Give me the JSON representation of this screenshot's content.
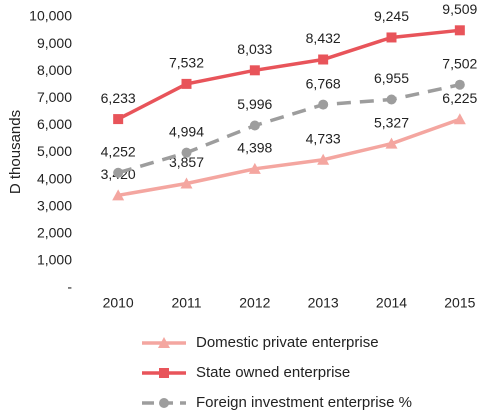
{
  "chart_data": {
    "type": "line",
    "y_label": "D thousands",
    "categories": [
      "2010",
      "2011",
      "2012",
      "2013",
      "2014",
      "2015"
    ],
    "series": [
      {
        "name": "Domestic private enterprise",
        "color": "#f4a6a0",
        "marker": "triangle",
        "dash": false,
        "values": [
          3420,
          3857,
          4398,
          4733,
          5327,
          6225
        ],
        "value_labels": [
          "3,420",
          "3,857",
          "4,398",
          "4,733",
          "5,327",
          "6,225"
        ]
      },
      {
        "name": "State owned enterprise",
        "color": "#e8545a",
        "marker": "square",
        "dash": false,
        "values": [
          6233,
          7532,
          8033,
          8432,
          9245,
          9509
        ],
        "value_labels": [
          "6,233",
          "7,532",
          "8,033",
          "8,432",
          "9,245",
          "9,509"
        ]
      },
      {
        "name": "Foreign investment enterprise %",
        "color": "#9d9d9d",
        "marker": "circle",
        "dash": true,
        "values": [
          4252,
          4994,
          5996,
          6768,
          6955,
          7502
        ],
        "value_labels": [
          "4,252",
          "4,994",
          "5,996",
          "6,768",
          "6,955",
          "7,502"
        ]
      }
    ],
    "ylim": [
      0,
      10000
    ],
    "yticks": [
      {
        "value": 0,
        "label": "-"
      },
      {
        "value": 1000,
        "label": "1,000"
      },
      {
        "value": 2000,
        "label": "2,000"
      },
      {
        "value": 3000,
        "label": "3,000"
      },
      {
        "value": 4000,
        "label": "4,000"
      },
      {
        "value": 5000,
        "label": "5,000"
      },
      {
        "value": 6000,
        "label": "6,000"
      },
      {
        "value": 7000,
        "label": "7,000"
      },
      {
        "value": 8000,
        "label": "8,000"
      },
      {
        "value": 9000,
        "label": "9,000"
      },
      {
        "value": 10000,
        "label": "10,000"
      }
    ],
    "grid": false
  }
}
